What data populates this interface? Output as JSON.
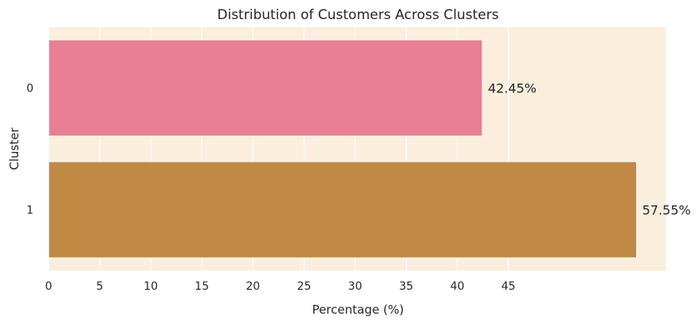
{
  "chart_data": {
    "type": "bar",
    "orientation": "horizontal",
    "title": "Distribution of Customers Across Clusters",
    "xlabel": "Percentage (%)",
    "ylabel": "Cluster",
    "categories": [
      "0",
      "1"
    ],
    "values": [
      42.45,
      57.55
    ],
    "data_labels": [
      "42.45%",
      "57.55%"
    ],
    "colors": [
      "#e78093",
      "#c08a45"
    ],
    "xlim": [
      0,
      60.4
    ],
    "xticks": [
      0,
      5,
      10,
      15,
      20,
      25,
      30,
      35,
      40,
      45
    ],
    "grid": true,
    "background": "#fbeedd",
    "grid_color": "#ffffff"
  }
}
